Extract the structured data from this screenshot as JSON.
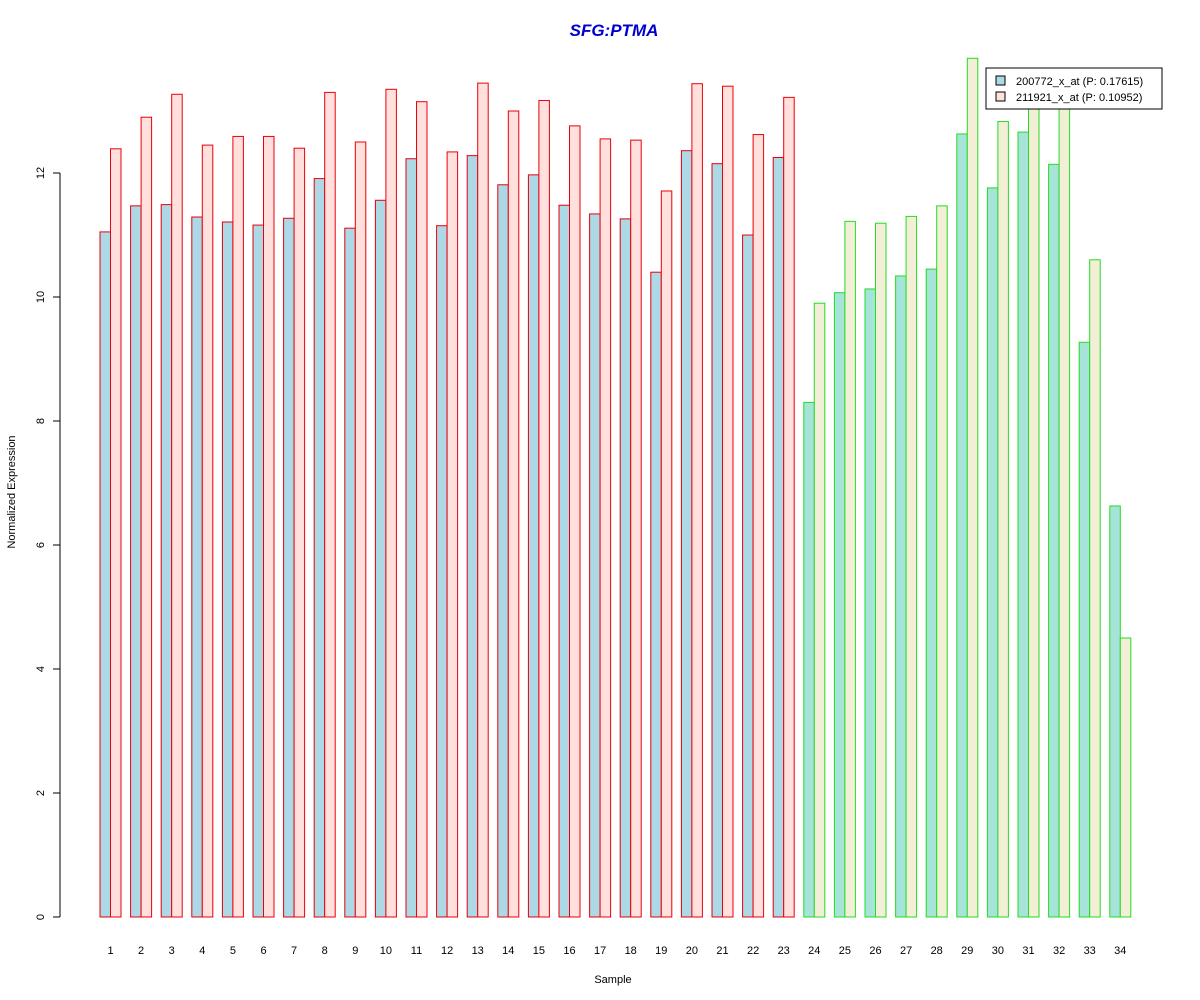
{
  "chart_data": {
    "type": "bar",
    "title": "SFG:PTMA",
    "xlabel": "Sample",
    "ylabel": "Normalized Expression",
    "ylim": [
      0,
      14
    ],
    "yticks": [
      0,
      2,
      4,
      6,
      8,
      10,
      12
    ],
    "categories": [
      "1",
      "2",
      "3",
      "4",
      "5",
      "6",
      "7",
      "8",
      "9",
      "10",
      "11",
      "12",
      "13",
      "14",
      "15",
      "16",
      "17",
      "18",
      "19",
      "20",
      "21",
      "22",
      "23",
      "24",
      "25",
      "26",
      "27",
      "28",
      "29",
      "30",
      "31",
      "32",
      "33",
      "34"
    ],
    "series": [
      {
        "name": "200772_x_at (P: 0.17615)",
        "values": [
          11.05,
          11.47,
          11.49,
          11.29,
          11.21,
          11.16,
          11.27,
          11.91,
          11.11,
          11.56,
          12.23,
          11.15,
          12.28,
          11.81,
          11.97,
          11.48,
          11.34,
          11.26,
          10.4,
          12.36,
          12.15,
          11.0,
          12.25,
          8.3,
          10.07,
          10.13,
          10.34,
          10.45,
          12.63,
          11.76,
          12.66,
          12.14,
          9.27,
          6.63
        ]
      },
      {
        "name": "211921_x_at (P: 0.10952)",
        "values": [
          12.39,
          12.9,
          13.27,
          12.45,
          12.59,
          12.59,
          12.4,
          13.3,
          12.5,
          13.35,
          13.15,
          12.34,
          13.45,
          13.0,
          13.17,
          12.76,
          12.55,
          12.53,
          11.71,
          13.44,
          13.4,
          12.62,
          13.22,
          9.9,
          11.22,
          11.19,
          11.3,
          11.47,
          13.85,
          12.83,
          13.1,
          13.1,
          10.6,
          4.5
        ]
      }
    ],
    "group_split_after": 23,
    "colors": {
      "title": "#0000cc",
      "s1_fill_a": "#add8e6",
      "s2_fill_a": "#ffe0dc",
      "border_a": "#e8000b",
      "s1_fill_b": "#a6e3d9",
      "s2_fill_b": "#f2efd6",
      "border_b": "#22dd22"
    },
    "legend_position": "top-right",
    "grid": false
  }
}
